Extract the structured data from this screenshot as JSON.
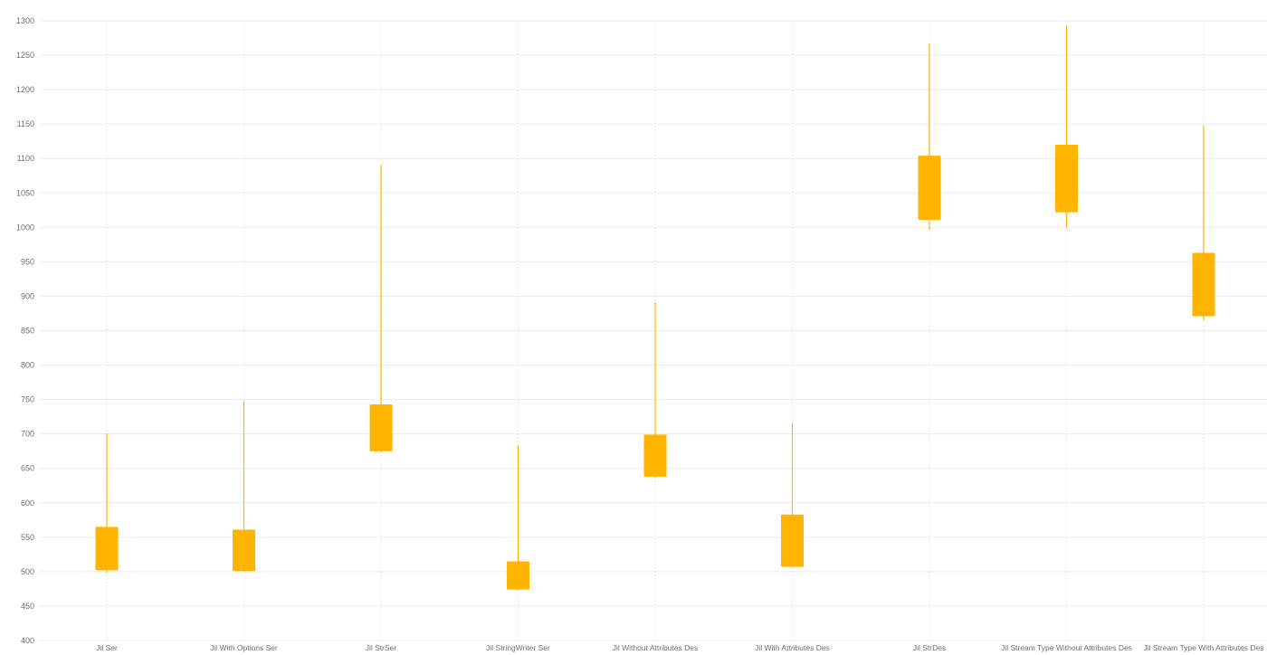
{
  "chart_data": {
    "type": "candlestick",
    "title": "",
    "xlabel": "",
    "ylabel": "",
    "ylim": [
      400,
      1300
    ],
    "yticks": [
      400,
      450,
      500,
      550,
      600,
      650,
      700,
      750,
      800,
      850,
      900,
      950,
      1000,
      1050,
      1100,
      1150,
      1200,
      1250,
      1300
    ],
    "grid": true,
    "legend": "none",
    "color": "#FFB400",
    "categories": [
      "Jil Ser",
      "Jil With Options Ser",
      "Jil StrSer",
      "Jil StringWriter Ser",
      "Jil Without Attributes Des",
      "Jil With Attributes Des",
      "Jil StrDes",
      "Jil Stream Type Without Attributes Des",
      "Jil Stream Type With Attributes Des"
    ],
    "series": [
      {
        "low": [
          498,
          500,
          673,
          473,
          636,
          506,
          996,
          1000,
          865
        ],
        "q1": [
          502,
          501,
          675,
          474,
          638,
          507,
          1011,
          1022,
          871
        ],
        "q3": [
          565,
          561,
          743,
          515,
          699,
          583,
          1104,
          1120,
          963
        ],
        "high": [
          701,
          748,
          1091,
          683,
          891,
          716,
          1267,
          1293,
          1148
        ]
      }
    ]
  }
}
